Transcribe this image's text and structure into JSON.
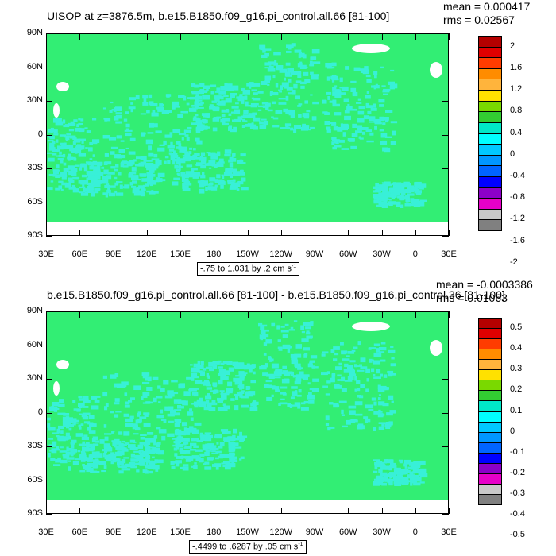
{
  "panel1": {
    "title": "UISOP at z=3876.5m, b.e15.B1850.f09_g16.pi_control.all.66 [81-100]",
    "mean": "mean = 0.000417",
    "rms": "rms = 0.02567",
    "contour_note_prefix": "-.75 to 1.031 by .2 cm s",
    "contour_note_exp": "-1",
    "colorbar_labels": [
      "2",
      "1.6",
      "1.2",
      "0.8",
      "0.4",
      "0",
      "-0.4",
      "-0.8",
      "-1.2",
      "-1.6",
      "-2"
    ]
  },
  "panel2": {
    "title": "b.e15.B1850.f09_g16.pi_control.all.66 [81-100] - b.e15.B1850.f09_g16.pi_control.36 [81-100]",
    "mean": "mean = -0.0003386",
    "rms": "rms = 0.01063",
    "contour_note_prefix": "-.4499 to .6287 by .05 cm s",
    "contour_note_exp": "-1",
    "colorbar_labels": [
      "0.5",
      "0.4",
      "0.3",
      "0.2",
      "0.1",
      "0",
      "-0.1",
      "-0.2",
      "-0.3",
      "-0.4",
      "-0.5"
    ]
  },
  "lat_labels": [
    "90N",
    "60N",
    "30N",
    "0",
    "30S",
    "60S",
    "90S"
  ],
  "lon_labels": [
    "30E",
    "60E",
    "90E",
    "120E",
    "150E",
    "180",
    "150W",
    "120W",
    "90W",
    "60W",
    "30W",
    "0",
    "30E"
  ],
  "colorbar_colors": [
    "#b40000",
    "#e00000",
    "#ff3c00",
    "#ff8c00",
    "#ffb43c",
    "#ffe100",
    "#7ad900",
    "#32cd32",
    "#00e8c8",
    "#00ffff",
    "#00c8ff",
    "#0096ff",
    "#0064ff",
    "#0000ff",
    "#8c00c8",
    "#e600c8",
    "#c8c8c8",
    "#808080"
  ],
  "map_colors": {
    "ocean": "#32ee74",
    "anomaly": "#38f0d8",
    "land": "#ffffff"
  }
}
